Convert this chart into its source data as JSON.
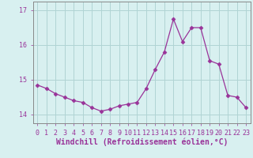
{
  "x": [
    0,
    1,
    2,
    3,
    4,
    5,
    6,
    7,
    8,
    9,
    10,
    11,
    12,
    13,
    14,
    15,
    16,
    17,
    18,
    19,
    20,
    21,
    22,
    23
  ],
  "y": [
    14.85,
    14.75,
    14.6,
    14.5,
    14.4,
    14.35,
    14.2,
    14.1,
    14.15,
    14.25,
    14.3,
    14.35,
    14.75,
    15.3,
    15.8,
    16.75,
    16.1,
    16.5,
    16.5,
    15.55,
    15.45,
    14.55,
    14.5,
    14.2
  ],
  "line_color": "#993399",
  "marker": "D",
  "marker_size": 2.5,
  "background_color": "#d8f0f0",
  "grid_color": "#b0d4d4",
  "xlabel": "Windchill (Refroidissement éolien,°C)",
  "xlabel_fontsize": 7,
  "tick_color": "#993399",
  "tick_fontsize": 6,
  "ylim": [
    13.75,
    17.25
  ],
  "yticks": [
    14,
    15,
    16,
    17
  ],
  "xlim": [
    -0.5,
    23.5
  ],
  "spine_color": "#888888"
}
